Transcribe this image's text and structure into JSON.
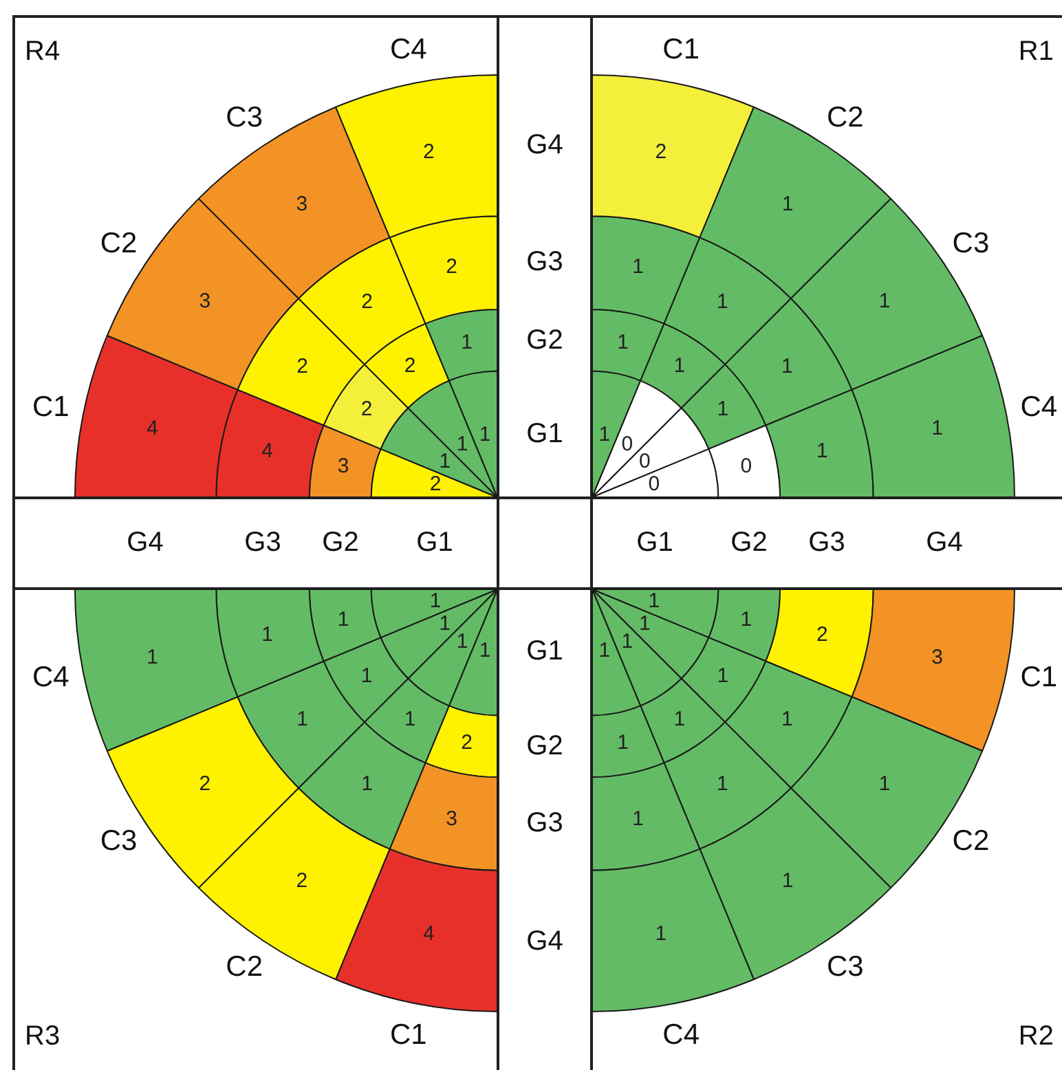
{
  "chart_data": [
    {
      "type": "other",
      "title": "R4",
      "categories": [
        "C1",
        "C2",
        "C3",
        "C4"
      ],
      "data_labels": true,
      "series": [
        {
          "name": "G4",
          "values": [
            4,
            3,
            3,
            2
          ],
          "colors": [
            "#e8302a",
            "#f39325",
            "#f39325",
            "#fff200"
          ]
        },
        {
          "name": "G3",
          "values": [
            4,
            2,
            2,
            2
          ],
          "colors": [
            "#e8302a",
            "#fff200",
            "#fff200",
            "#fff200"
          ]
        },
        {
          "name": "G2",
          "values": [
            3,
            2,
            2,
            1
          ],
          "colors": [
            "#f39325",
            "#f4ef3b",
            "#fff200",
            "#63bc65"
          ]
        },
        {
          "name": "G1",
          "values": [
            2,
            1,
            1,
            1
          ],
          "colors": [
            "#fff200",
            "#63bc65",
            "#63bc65",
            "#63bc65"
          ]
        }
      ]
    },
    {
      "type": "other",
      "title": "R1",
      "categories": [
        "C1",
        "C2",
        "C3",
        "C4"
      ],
      "data_labels": true,
      "series": [
        {
          "name": "G4",
          "values": [
            2,
            1,
            1,
            1
          ],
          "colors": [
            "#f4ef3b",
            "#63bc65",
            "#63bc65",
            "#63bc65"
          ]
        },
        {
          "name": "G3",
          "values": [
            1,
            1,
            1,
            1
          ],
          "colors": [
            "#63bc65",
            "#63bc65",
            "#63bc65",
            "#63bc65"
          ]
        },
        {
          "name": "G2",
          "values": [
            1,
            1,
            1,
            0
          ],
          "colors": [
            "#63bc65",
            "#63bc65",
            "#63bc65",
            "#ffffff"
          ]
        },
        {
          "name": "G1",
          "values": [
            1,
            0,
            0,
            0
          ],
          "colors": [
            "#63bc65",
            "#ffffff",
            "#ffffff",
            "#ffffff"
          ]
        }
      ]
    },
    {
      "type": "other",
      "title": "R3",
      "categories": [
        "C1",
        "C2",
        "C3",
        "C4"
      ],
      "data_labels": true,
      "series": [
        {
          "name": "G4",
          "values": [
            4,
            2,
            2,
            1
          ],
          "colors": [
            "#e8302a",
            "#fff200",
            "#fff200",
            "#63bc65"
          ]
        },
        {
          "name": "G3",
          "values": [
            3,
            1,
            1,
            1
          ],
          "colors": [
            "#f39325",
            "#63bc65",
            "#63bc65",
            "#63bc65"
          ]
        },
        {
          "name": "G2",
          "values": [
            2,
            1,
            1,
            1
          ],
          "colors": [
            "#fff200",
            "#63bc65",
            "#63bc65",
            "#63bc65"
          ]
        },
        {
          "name": "G1",
          "values": [
            1,
            1,
            1,
            1
          ],
          "colors": [
            "#63bc65",
            "#63bc65",
            "#63bc65",
            "#63bc65"
          ]
        }
      ]
    },
    {
      "type": "other",
      "title": "R2",
      "categories": [
        "C1",
        "C2",
        "C3",
        "C4"
      ],
      "data_labels": true,
      "series": [
        {
          "name": "G4",
          "values": [
            3,
            1,
            1,
            1
          ],
          "colors": [
            "#f39325",
            "#63bc65",
            "#63bc65",
            "#63bc65"
          ]
        },
        {
          "name": "G3",
          "values": [
            2,
            1,
            1,
            1
          ],
          "colors": [
            "#fff200",
            "#63bc65",
            "#63bc65",
            "#63bc65"
          ]
        },
        {
          "name": "G2",
          "values": [
            1,
            1,
            1,
            1
          ],
          "colors": [
            "#63bc65",
            "#63bc65",
            "#63bc65",
            "#63bc65"
          ]
        },
        {
          "name": "G1",
          "values": [
            1,
            1,
            1,
            1
          ],
          "colors": [
            "#63bc65",
            "#63bc65",
            "#63bc65",
            "#63bc65"
          ]
        }
      ]
    }
  ]
}
